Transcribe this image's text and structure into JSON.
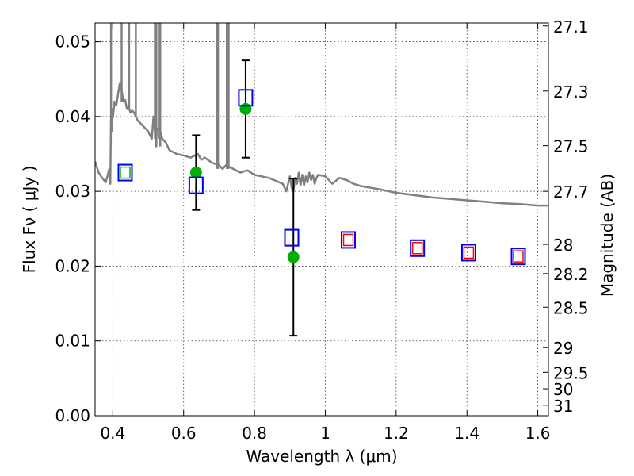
{
  "chart_data": {
    "type": "scatter",
    "xlabel": "Wavelength  λ (μm)",
    "ylabel": "Flux  Fν  ( μJy )",
    "ylabel_right": "Magnitude (AB)",
    "xlim": [
      0.35,
      1.63
    ],
    "ylim": [
      0.0,
      0.0525
    ],
    "grid": true,
    "x_ticks": [
      {
        "value": 0.4,
        "label": "0.4"
      },
      {
        "value": 0.6,
        "label": "0.6"
      },
      {
        "value": 0.8,
        "label": "0.8"
      },
      {
        "value": 1.0,
        "label": "1"
      },
      {
        "value": 1.2,
        "label": "1.2"
      },
      {
        "value": 1.4,
        "label": "1.4"
      },
      {
        "value": 1.6,
        "label": "1.6"
      }
    ],
    "y_ticks": [
      {
        "value": 0.0,
        "label": "0.00"
      },
      {
        "value": 0.01,
        "label": "0.01"
      },
      {
        "value": 0.02,
        "label": "0.02"
      },
      {
        "value": 0.03,
        "label": "0.03"
      },
      {
        "value": 0.04,
        "label": "0.04"
      },
      {
        "value": 0.05,
        "label": "0.05"
      }
    ],
    "right_ticks": [
      {
        "flux": 0.0521,
        "label": "27.1"
      },
      {
        "flux": 0.0434,
        "label": "27.3"
      },
      {
        "flux": 0.0361,
        "label": "27.5"
      },
      {
        "flux": 0.03,
        "label": "27.7"
      },
      {
        "flux": 0.0229,
        "label": "28"
      },
      {
        "flux": 0.019,
        "label": "28.2"
      },
      {
        "flux": 0.0145,
        "label": "28.5"
      },
      {
        "flux": 0.0091,
        "label": "29"
      },
      {
        "flux": 0.0058,
        "label": "29.5"
      },
      {
        "flux": 0.0036,
        "label": "30"
      },
      {
        "flux": 0.0014,
        "label": "31"
      }
    ],
    "series": [
      {
        "kind": "line",
        "color": "#808080",
        "x": [
          0.35,
          0.36,
          0.37,
          0.38,
          0.385,
          0.39,
          0.393,
          0.395,
          0.397,
          0.398,
          0.4,
          0.405,
          0.41,
          0.415,
          0.42,
          0.425,
          0.43,
          0.435,
          0.44,
          0.445,
          0.45,
          0.455,
          0.46,
          0.47,
          0.48,
          0.49,
          0.5,
          0.51,
          0.515,
          0.52,
          0.522,
          0.524,
          0.53,
          0.54,
          0.55,
          0.56,
          0.58,
          0.6,
          0.62,
          0.64,
          0.65,
          0.66,
          0.68,
          0.7,
          0.71,
          0.72,
          0.74,
          0.76,
          0.78,
          0.8,
          0.82,
          0.84,
          0.86,
          0.88,
          0.89,
          0.9,
          0.905,
          0.91,
          0.915,
          0.92,
          0.925,
          0.93,
          0.935,
          0.94,
          0.945,
          0.95,
          0.955,
          0.96,
          0.965,
          0.97,
          0.975,
          0.98,
          1.0,
          1.02,
          1.04,
          1.06,
          1.08,
          1.1,
          1.15,
          1.2,
          1.25,
          1.3,
          1.35,
          1.4,
          1.45,
          1.5,
          1.55,
          1.6,
          1.63
        ],
        "y": [
          0.034,
          0.0325,
          0.0318,
          0.0312,
          0.032,
          0.033,
          0.031,
          0.04,
          0.038,
          0.041,
          0.0398,
          0.042,
          0.0415,
          0.043,
          0.0445,
          0.0435,
          0.042,
          0.0422,
          0.041,
          0.0412,
          0.0405,
          0.0408,
          0.0405,
          0.0395,
          0.039,
          0.0385,
          0.038,
          0.037,
          0.04,
          0.0375,
          0.036,
          0.0382,
          0.0385,
          0.037,
          0.0365,
          0.0355,
          0.035,
          0.0348,
          0.0345,
          0.035,
          0.0342,
          0.0345,
          0.0338,
          0.0335,
          0.033,
          0.0335,
          0.033,
          0.0325,
          0.0328,
          0.0322,
          0.032,
          0.0318,
          0.0314,
          0.031,
          0.03,
          0.032,
          0.0305,
          0.03,
          0.0318,
          0.031,
          0.0325,
          0.0308,
          0.0322,
          0.0308,
          0.032,
          0.0312,
          0.0325,
          0.0315,
          0.0322,
          0.031,
          0.0318,
          0.0322,
          0.032,
          0.031,
          0.0318,
          0.0315,
          0.031,
          0.0307,
          0.0303,
          0.0298,
          0.0295,
          0.0292,
          0.029,
          0.0288,
          0.0286,
          0.0284,
          0.0283,
          0.0281,
          0.0281
        ]
      },
      {
        "kind": "spikes",
        "color": "#808080",
        "x": [
          0.395,
          0.425,
          0.446,
          0.465,
          0.519,
          0.523,
          0.53,
          0.534,
          0.693,
          0.697,
          0.722,
          0.727
        ],
        "y_top": 0.0525,
        "y_base": [
          0.04,
          0.042,
          0.041,
          0.04,
          0.037,
          0.036,
          0.037,
          0.036,
          0.033,
          0.033,
          0.033,
          0.033
        ]
      },
      {
        "kind": "points",
        "marker": "circle",
        "color": "#00b000",
        "x": [
          0.635,
          0.775,
          0.91
        ],
        "y": [
          0.0325,
          0.041,
          0.0212
        ],
        "yerr_low": [
          0.0275,
          0.0345,
          0.0107
        ],
        "yerr_high": [
          0.0375,
          0.0475,
          0.0317
        ]
      },
      {
        "kind": "points",
        "marker": "square",
        "color": "#0000ff",
        "x": [
          0.435,
          0.635,
          0.775,
          0.905,
          1.065,
          1.26,
          1.405,
          1.545
        ],
        "y": [
          0.0325,
          0.0308,
          0.0425,
          0.0238,
          0.0235,
          0.0224,
          0.0218,
          0.0213
        ]
      },
      {
        "kind": "points",
        "marker": "square-small",
        "colors": [
          "#00b000",
          "#ff0000",
          "#ff0000",
          "#ff0000",
          "#ff0000"
        ],
        "x": [
          0.435,
          1.065,
          1.26,
          1.405,
          1.545
        ],
        "y": [
          0.0325,
          0.0235,
          0.0224,
          0.0218,
          0.0213
        ]
      }
    ]
  }
}
